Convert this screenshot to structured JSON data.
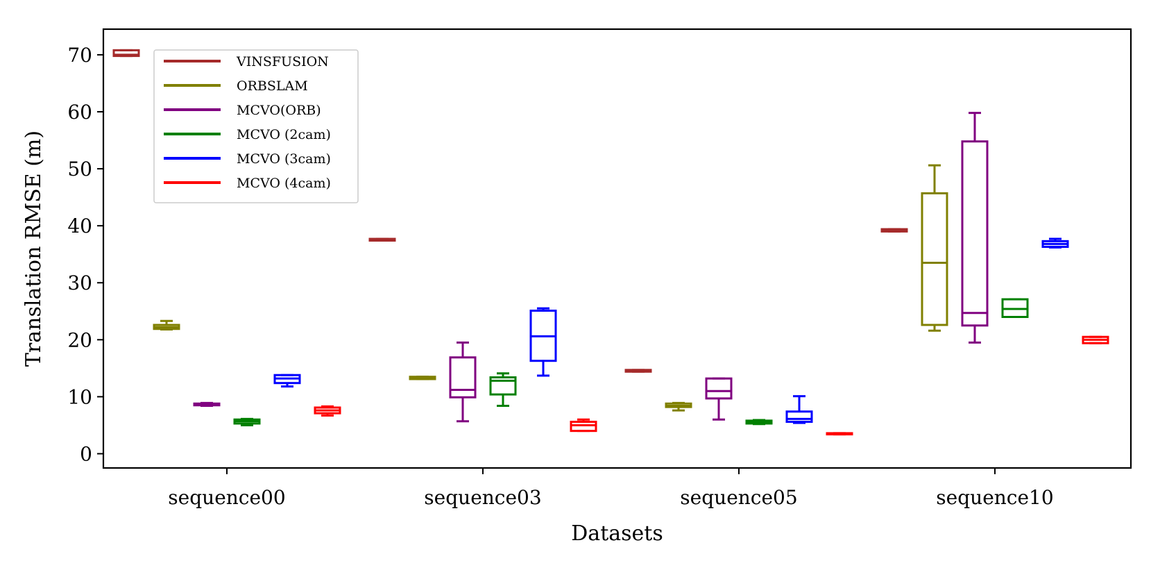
{
  "chart_data": {
    "type": "box",
    "title": "",
    "xlabel": "Datasets",
    "ylabel": "Translation RMSE (m)",
    "ylim": [
      -2.5,
      74.5
    ],
    "yticks": [
      0,
      10,
      20,
      30,
      40,
      50,
      60,
      70
    ],
    "categories": [
      "sequence00",
      "sequence03",
      "sequence05",
      "sequence10"
    ],
    "legend_position": "top-left",
    "series": [
      {
        "name": "VINSFUSION",
        "color": "#a52a2a",
        "boxes": [
          {
            "whislo": 69.8,
            "q1": 69.8,
            "med": 70.0,
            "q3": 70.8,
            "whishi": 70.8
          },
          {
            "whislo": 37.4,
            "q1": 37.4,
            "med": 37.5,
            "q3": 37.7,
            "whishi": 37.7
          },
          {
            "whislo": 14.4,
            "q1": 14.4,
            "med": 14.5,
            "q3": 14.7,
            "whishi": 14.7
          },
          {
            "whislo": 39.0,
            "q1": 39.0,
            "med": 39.2,
            "q3": 39.4,
            "whishi": 39.4
          }
        ]
      },
      {
        "name": "ORBSLAM",
        "color": "#808000",
        "boxes": [
          {
            "whislo": 21.8,
            "q1": 21.9,
            "med": 22.2,
            "q3": 22.6,
            "whishi": 23.3
          },
          {
            "whislo": 13.1,
            "q1": 13.1,
            "med": 13.3,
            "q3": 13.5,
            "whishi": 13.5
          },
          {
            "whislo": 7.6,
            "q1": 8.2,
            "med": 8.4,
            "q3": 8.8,
            "whishi": 8.9
          },
          {
            "whislo": 21.6,
            "q1": 22.6,
            "med": 33.5,
            "q3": 45.7,
            "whishi": 50.6
          }
        ]
      },
      {
        "name": "MCVO(ORB)",
        "color": "#800080",
        "boxes": [
          {
            "whislo": 8.4,
            "q1": 8.5,
            "med": 8.6,
            "q3": 8.8,
            "whishi": 8.9
          },
          {
            "whislo": 5.7,
            "q1": 9.9,
            "med": 11.2,
            "q3": 16.9,
            "whishi": 19.5
          },
          {
            "whislo": 6.0,
            "q1": 9.7,
            "med": 11.0,
            "q3": 13.2,
            "whishi": 13.2
          },
          {
            "whislo": 19.5,
            "q1": 22.5,
            "med": 24.7,
            "q3": 54.8,
            "whishi": 59.8
          }
        ]
      },
      {
        "name": "MCVO  (2cam)",
        "color": "#008000",
        "boxes": [
          {
            "whislo": 5.0,
            "q1": 5.3,
            "med": 5.7,
            "q3": 6.0,
            "whishi": 6.1
          },
          {
            "whislo": 8.4,
            "q1": 10.4,
            "med": 12.8,
            "q3": 13.4,
            "whishi": 14.1
          },
          {
            "whislo": 5.2,
            "q1": 5.3,
            "med": 5.5,
            "q3": 5.8,
            "whishi": 5.9
          },
          {
            "whislo": 24.0,
            "q1": 24.0,
            "med": 25.4,
            "q3": 27.1,
            "whishi": 27.1
          }
        ]
      },
      {
        "name": "MCVO  (3cam)",
        "color": "#0000ff",
        "boxes": [
          {
            "whislo": 11.8,
            "q1": 12.4,
            "med": 13.2,
            "q3": 13.8,
            "whishi": 13.8
          },
          {
            "whislo": 13.7,
            "q1": 16.3,
            "med": 20.6,
            "q3": 25.1,
            "whishi": 25.5
          },
          {
            "whislo": 5.4,
            "q1": 5.6,
            "med": 6.1,
            "q3": 7.4,
            "whishi": 10.1
          },
          {
            "whislo": 36.2,
            "q1": 36.3,
            "med": 36.8,
            "q3": 37.3,
            "whishi": 37.7
          }
        ]
      },
      {
        "name": "MCVO  (4cam)",
        "color": "#ff0000",
        "boxes": [
          {
            "whislo": 6.7,
            "q1": 7.1,
            "med": 7.6,
            "q3": 8.1,
            "whishi": 8.3
          },
          {
            "whislo": 4.0,
            "q1": 4.0,
            "med": 5.0,
            "q3": 5.6,
            "whishi": 6.0
          },
          {
            "whislo": 3.4,
            "q1": 3.4,
            "med": 3.5,
            "q3": 3.6,
            "whishi": 3.6
          },
          {
            "whislo": 19.4,
            "q1": 19.4,
            "med": 20.0,
            "q3": 20.5,
            "whishi": 20.5
          }
        ]
      }
    ]
  }
}
